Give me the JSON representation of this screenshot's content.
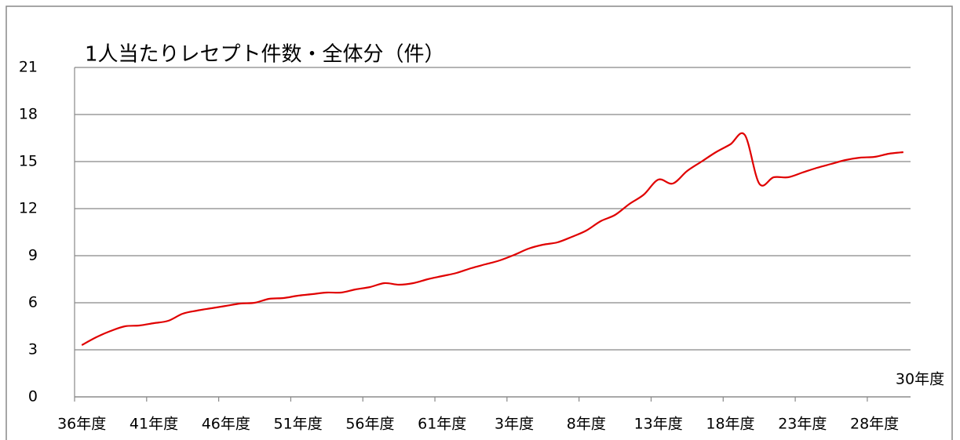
{
  "chart_data": {
    "type": "line",
    "title": "1人当たりレセプト件数・全体分（件）",
    "categories": [
      "36年度",
      null,
      null,
      null,
      null,
      "41年度",
      null,
      null,
      null,
      null,
      "46年度",
      null,
      null,
      null,
      null,
      "51年度",
      null,
      null,
      null,
      null,
      "56年度",
      null,
      null,
      null,
      null,
      "61年度",
      null,
      null,
      null,
      null,
      "3年度",
      null,
      null,
      null,
      null,
      "8年度",
      null,
      null,
      null,
      null,
      "13年度",
      null,
      null,
      null,
      null,
      "18年度",
      null,
      null,
      null,
      null,
      "23年度",
      null,
      null,
      null,
      null,
      "28年度",
      null,
      "30年度"
    ],
    "series": [
      {
        "name": "1人当たりレセプト件数",
        "color": "#e00000",
        "values": [
          3.3,
          3.8,
          4.2,
          4.5,
          4.55,
          4.7,
          4.85,
          5.3,
          5.5,
          5.65,
          5.8,
          5.95,
          6.0,
          6.25,
          6.3,
          6.45,
          6.55,
          6.65,
          6.65,
          6.85,
          7.0,
          7.25,
          7.15,
          7.25,
          7.5,
          7.7,
          7.9,
          8.2,
          8.45,
          8.7,
          9.05,
          9.45,
          9.7,
          9.85,
          10.2,
          10.6,
          11.2,
          11.6,
          12.3,
          12.9,
          13.85,
          13.6,
          14.4,
          15.0,
          15.6,
          16.1,
          16.7,
          13.6,
          14.0,
          14.0,
          14.3,
          14.6,
          14.85,
          15.1,
          15.25,
          15.3,
          15.5,
          15.6
        ]
      }
    ],
    "ylim": [
      0,
      21
    ],
    "yticks": [
      0,
      3,
      6,
      9,
      12,
      15,
      18,
      21
    ],
    "grid": true
  }
}
